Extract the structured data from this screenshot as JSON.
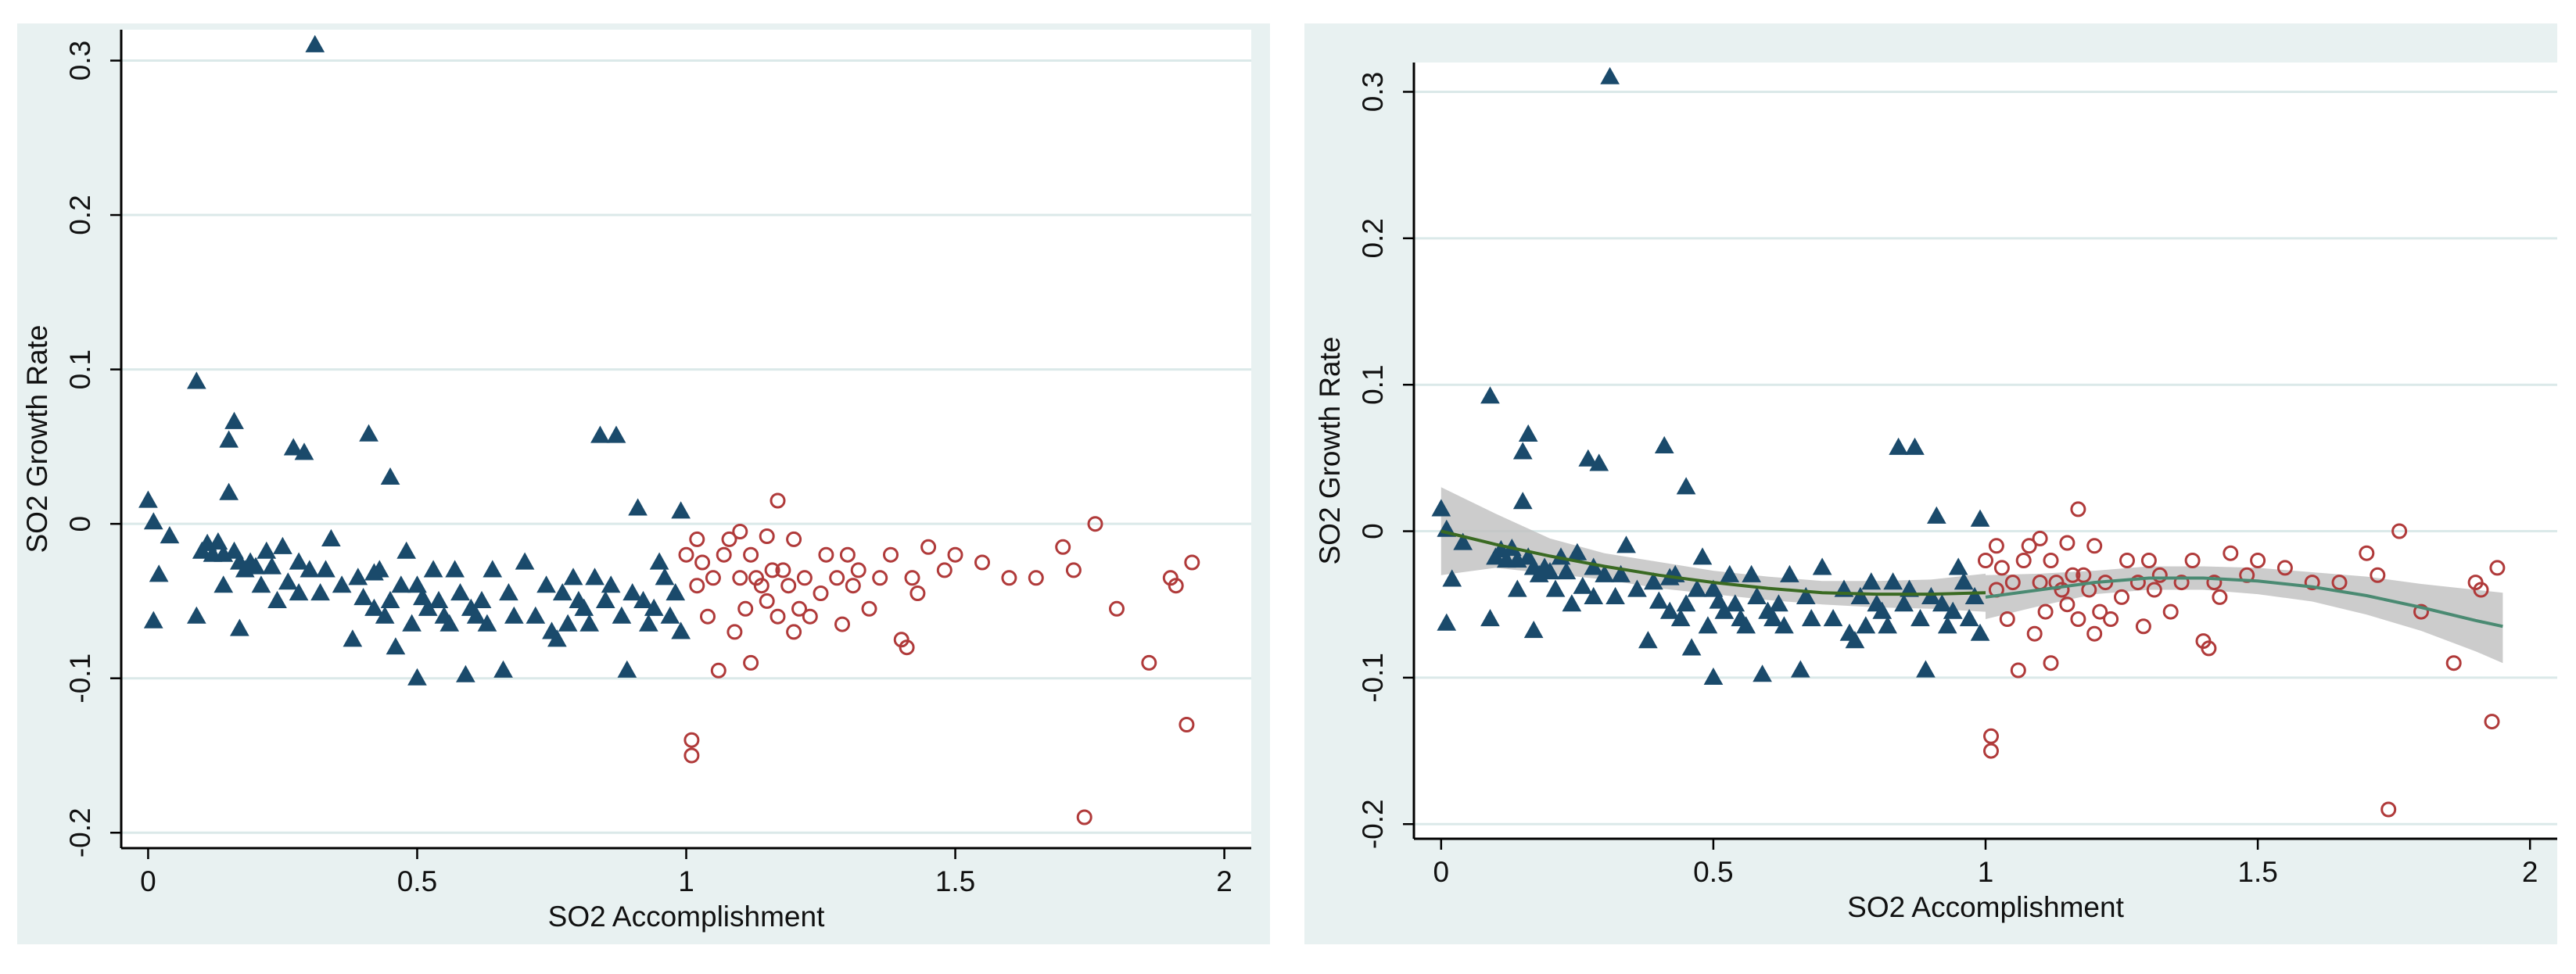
{
  "colors": {
    "outer_background": "#e8f1f1",
    "plot_background": "#ffffff",
    "gridline": "#dbe9e9",
    "axis": "#000000",
    "below_marker": "#1a4a6b",
    "above_marker": "#b03a3a",
    "fit_line_left": "#3a6a22",
    "fit_line_right": "#4a8a72",
    "confidence_band": "#bfbfbf"
  },
  "marker_shapes": {
    "below": "filled-triangle-marker",
    "above": "hollow-circle-marker"
  },
  "chart_data": [
    {
      "type": "scatter",
      "title": "",
      "xlabel": "SO2 Accomplishment",
      "ylabel": "SO2 Growth Rate",
      "xlim": [
        -0.05,
        2.05
      ],
      "ylim": [
        -0.21,
        0.32
      ],
      "xticks": [
        0,
        0.5,
        1,
        1.5,
        2
      ],
      "xtick_labels": [
        "0",
        "0.5",
        "1",
        "1.5",
        "2"
      ],
      "yticks": [
        -0.2,
        -0.1,
        0,
        0.1,
        0.2,
        0.3
      ],
      "ytick_labels": [
        "-0.2",
        "-0.1",
        "0",
        "0.1",
        "0.2",
        "0.3"
      ],
      "grid": true,
      "series": [
        {
          "marker": "triangle",
          "x": [
            0,
            0.01,
            0.01,
            0.02,
            0.04,
            0.09,
            0.09,
            0.1,
            0.11,
            0.12,
            0.13,
            0.14,
            0.14,
            0.15,
            0.15,
            0.16,
            0.16,
            0.17,
            0.17,
            0.18,
            0.19,
            0.2,
            0.21,
            0.22,
            0.23,
            0.24,
            0.25,
            0.26,
            0.27,
            0.28,
            0.28,
            0.29,
            0.3,
            0.31,
            0.32,
            0.33,
            0.34,
            0.36,
            0.38,
            0.39,
            0.4,
            0.41,
            0.42,
            0.42,
            0.43,
            0.44,
            0.45,
            0.45,
            0.46,
            0.47,
            0.48,
            0.49,
            0.5,
            0.5,
            0.51,
            0.52,
            0.53,
            0.54,
            0.55,
            0.56,
            0.57,
            0.58,
            0.59,
            0.6,
            0.61,
            0.62,
            0.63,
            0.64,
            0.66,
            0.67,
            0.68,
            0.7,
            0.72,
            0.74,
            0.75,
            0.76,
            0.77,
            0.78,
            0.79,
            0.8,
            0.81,
            0.82,
            0.83,
            0.84,
            0.85,
            0.86,
            0.87,
            0.88,
            0.89,
            0.9,
            0.91,
            0.92,
            0.93,
            0.94,
            0.95,
            0.96,
            0.97,
            0.98,
            0.99,
            0.99
          ],
          "y": [
            0.015,
            0.001,
            -0.063,
            -0.033,
            -0.008,
            0.092,
            -0.06,
            -0.018,
            -0.013,
            -0.02,
            -0.012,
            -0.02,
            -0.04,
            0.02,
            0.054,
            -0.018,
            0.066,
            -0.025,
            -0.068,
            -0.03,
            -0.025,
            -0.028,
            -0.04,
            -0.018,
            -0.028,
            -0.05,
            -0.015,
            -0.038,
            0.049,
            -0.045,
            -0.025,
            0.046,
            -0.03,
            0.31,
            -0.045,
            -0.03,
            -0.01,
            -0.04,
            -0.075,
            -0.035,
            -0.048,
            0.058,
            -0.055,
            -0.032,
            -0.03,
            -0.06,
            0.03,
            -0.05,
            -0.08,
            -0.04,
            -0.018,
            -0.065,
            -0.1,
            -0.04,
            -0.048,
            -0.055,
            -0.03,
            -0.05,
            -0.06,
            -0.065,
            -0.03,
            -0.045,
            -0.098,
            -0.055,
            -0.06,
            -0.05,
            -0.065,
            -0.03,
            -0.095,
            -0.045,
            -0.06,
            -0.025,
            -0.06,
            -0.04,
            -0.07,
            -0.075,
            -0.045,
            -0.065,
            -0.035,
            -0.05,
            -0.055,
            -0.065,
            -0.035,
            0.057,
            -0.05,
            -0.04,
            0.057,
            -0.06,
            -0.095,
            -0.045,
            0.01,
            -0.05,
            -0.065,
            -0.055,
            -0.025,
            -0.035,
            -0.06,
            -0.045,
            0.008,
            -0.07
          ]
        },
        {
          "marker": "circle",
          "x": [
            1.0,
            1.01,
            1.01,
            1.02,
            1.02,
            1.03,
            1.04,
            1.05,
            1.06,
            1.07,
            1.08,
            1.09,
            1.1,
            1.1,
            1.11,
            1.12,
            1.12,
            1.13,
            1.14,
            1.15,
            1.15,
            1.16,
            1.17,
            1.17,
            1.18,
            1.19,
            1.2,
            1.2,
            1.21,
            1.22,
            1.23,
            1.25,
            1.26,
            1.28,
            1.29,
            1.3,
            1.31,
            1.32,
            1.34,
            1.36,
            1.38,
            1.4,
            1.41,
            1.42,
            1.43,
            1.45,
            1.48,
            1.5,
            1.55,
            1.6,
            1.65,
            1.7,
            1.72,
            1.74,
            1.76,
            1.8,
            1.86,
            1.9,
            1.91,
            1.93,
            1.94
          ],
          "y": [
            -0.02,
            -0.14,
            -0.15,
            -0.04,
            -0.01,
            -0.025,
            -0.06,
            -0.035,
            -0.095,
            -0.02,
            -0.01,
            -0.07,
            -0.035,
            -0.005,
            -0.055,
            -0.02,
            -0.09,
            -0.035,
            -0.04,
            -0.05,
            -0.008,
            -0.03,
            -0.06,
            0.015,
            -0.03,
            -0.04,
            -0.07,
            -0.01,
            -0.055,
            -0.035,
            -0.06,
            -0.045,
            -0.02,
            -0.035,
            -0.065,
            -0.02,
            -0.04,
            -0.03,
            -0.055,
            -0.035,
            -0.02,
            -0.075,
            -0.08,
            -0.035,
            -0.045,
            -0.015,
            -0.03,
            -0.02,
            -0.025,
            -0.035,
            -0.035,
            -0.015,
            -0.03,
            -0.19,
            0.0,
            -0.055,
            -0.09,
            -0.035,
            -0.04,
            -0.13,
            -0.025
          ]
        }
      ]
    },
    {
      "type": "scatter",
      "title": "",
      "xlabel": "SO2 Accomplishment",
      "ylabel": "SO2 Growth Rate",
      "xlim": [
        -0.05,
        2.05
      ],
      "ylim": [
        -0.21,
        0.32
      ],
      "xticks": [
        0,
        0.5,
        1,
        1.5,
        2
      ],
      "xtick_labels": [
        "0",
        "0.5",
        "1",
        "1.5",
        "2"
      ],
      "yticks": [
        -0.2,
        -0.1,
        0,
        0.1,
        0.2,
        0.3
      ],
      "ytick_labels": [
        "-0.2",
        "-0.1",
        "0",
        "0.1",
        "0.2",
        "0.3"
      ],
      "grid": true,
      "fit_lines": [
        {
          "x": [
            0,
            0.1,
            0.2,
            0.3,
            0.4,
            0.5,
            0.6,
            0.7,
            0.8,
            0.9,
            1.0
          ],
          "y": [
            0.0,
            -0.009,
            -0.017,
            -0.024,
            -0.03,
            -0.035,
            -0.039,
            -0.042,
            -0.043,
            -0.043,
            -0.042
          ],
          "ci_low": [
            -0.03,
            -0.025,
            -0.029,
            -0.033,
            -0.039,
            -0.043,
            -0.047,
            -0.05,
            -0.052,
            -0.053,
            -0.055
          ],
          "ci_high": [
            0.03,
            0.012,
            -0.005,
            -0.015,
            -0.021,
            -0.027,
            -0.031,
            -0.034,
            -0.034,
            -0.033,
            -0.029
          ]
        },
        {
          "x": [
            1.0,
            1.1,
            1.2,
            1.3,
            1.4,
            1.5,
            1.6,
            1.7,
            1.8,
            1.9,
            1.95
          ],
          "y": [
            -0.045,
            -0.04,
            -0.035,
            -0.032,
            -0.032,
            -0.034,
            -0.038,
            -0.044,
            -0.052,
            -0.061,
            -0.065
          ],
          "ci_low": [
            -0.06,
            -0.051,
            -0.043,
            -0.04,
            -0.04,
            -0.043,
            -0.048,
            -0.057,
            -0.068,
            -0.082,
            -0.09
          ],
          "ci_high": [
            -0.03,
            -0.029,
            -0.027,
            -0.024,
            -0.024,
            -0.025,
            -0.028,
            -0.031,
            -0.036,
            -0.04,
            -0.042
          ]
        }
      ],
      "series": [
        {
          "marker": "triangle",
          "x": [
            0,
            0.01,
            0.01,
            0.02,
            0.04,
            0.09,
            0.09,
            0.1,
            0.11,
            0.12,
            0.13,
            0.14,
            0.14,
            0.15,
            0.15,
            0.16,
            0.16,
            0.17,
            0.17,
            0.18,
            0.19,
            0.2,
            0.21,
            0.22,
            0.23,
            0.24,
            0.25,
            0.26,
            0.27,
            0.28,
            0.28,
            0.29,
            0.3,
            0.31,
            0.32,
            0.33,
            0.34,
            0.36,
            0.38,
            0.39,
            0.4,
            0.41,
            0.42,
            0.42,
            0.43,
            0.44,
            0.45,
            0.45,
            0.46,
            0.47,
            0.48,
            0.49,
            0.5,
            0.5,
            0.51,
            0.52,
            0.53,
            0.54,
            0.55,
            0.56,
            0.57,
            0.58,
            0.59,
            0.6,
            0.61,
            0.62,
            0.63,
            0.64,
            0.66,
            0.67,
            0.68,
            0.7,
            0.72,
            0.74,
            0.75,
            0.76,
            0.77,
            0.78,
            0.79,
            0.8,
            0.81,
            0.82,
            0.83,
            0.84,
            0.85,
            0.86,
            0.87,
            0.88,
            0.89,
            0.9,
            0.91,
            0.92,
            0.93,
            0.94,
            0.95,
            0.96,
            0.97,
            0.98,
            0.99,
            0.99
          ],
          "y": [
            0.015,
            0.001,
            -0.063,
            -0.033,
            -0.008,
            0.092,
            -0.06,
            -0.018,
            -0.013,
            -0.02,
            -0.012,
            -0.02,
            -0.04,
            0.02,
            0.054,
            -0.018,
            0.066,
            -0.025,
            -0.068,
            -0.03,
            -0.025,
            -0.028,
            -0.04,
            -0.018,
            -0.028,
            -0.05,
            -0.015,
            -0.038,
            0.049,
            -0.045,
            -0.025,
            0.046,
            -0.03,
            0.31,
            -0.045,
            -0.03,
            -0.01,
            -0.04,
            -0.075,
            -0.035,
            -0.048,
            0.058,
            -0.055,
            -0.032,
            -0.03,
            -0.06,
            0.03,
            -0.05,
            -0.08,
            -0.04,
            -0.018,
            -0.065,
            -0.1,
            -0.04,
            -0.048,
            -0.055,
            -0.03,
            -0.05,
            -0.06,
            -0.065,
            -0.03,
            -0.045,
            -0.098,
            -0.055,
            -0.06,
            -0.05,
            -0.065,
            -0.03,
            -0.095,
            -0.045,
            -0.06,
            -0.025,
            -0.06,
            -0.04,
            -0.07,
            -0.075,
            -0.045,
            -0.065,
            -0.035,
            -0.05,
            -0.055,
            -0.065,
            -0.035,
            0.057,
            -0.05,
            -0.04,
            0.057,
            -0.06,
            -0.095,
            -0.045,
            0.01,
            -0.05,
            -0.065,
            -0.055,
            -0.025,
            -0.035,
            -0.06,
            -0.045,
            0.008,
            -0.07
          ]
        },
        {
          "marker": "circle",
          "x": [
            1.0,
            1.01,
            1.01,
            1.02,
            1.02,
            1.03,
            1.04,
            1.05,
            1.06,
            1.07,
            1.08,
            1.09,
            1.1,
            1.1,
            1.11,
            1.12,
            1.12,
            1.13,
            1.14,
            1.15,
            1.15,
            1.16,
            1.17,
            1.17,
            1.18,
            1.19,
            1.2,
            1.2,
            1.21,
            1.22,
            1.23,
            1.25,
            1.26,
            1.28,
            1.29,
            1.3,
            1.31,
            1.32,
            1.34,
            1.36,
            1.38,
            1.4,
            1.41,
            1.42,
            1.43,
            1.45,
            1.48,
            1.5,
            1.55,
            1.6,
            1.65,
            1.7,
            1.72,
            1.74,
            1.76,
            1.8,
            1.86,
            1.9,
            1.91,
            1.93,
            1.94
          ],
          "y": [
            -0.02,
            -0.14,
            -0.15,
            -0.04,
            -0.01,
            -0.025,
            -0.06,
            -0.035,
            -0.095,
            -0.02,
            -0.01,
            -0.07,
            -0.035,
            -0.005,
            -0.055,
            -0.02,
            -0.09,
            -0.035,
            -0.04,
            -0.05,
            -0.008,
            -0.03,
            -0.06,
            0.015,
            -0.03,
            -0.04,
            -0.07,
            -0.01,
            -0.055,
            -0.035,
            -0.06,
            -0.045,
            -0.02,
            -0.035,
            -0.065,
            -0.02,
            -0.04,
            -0.03,
            -0.055,
            -0.035,
            -0.02,
            -0.075,
            -0.08,
            -0.035,
            -0.045,
            -0.015,
            -0.03,
            -0.02,
            -0.025,
            -0.035,
            -0.035,
            -0.015,
            -0.03,
            -0.19,
            0.0,
            -0.055,
            -0.09,
            -0.035,
            -0.04,
            -0.13,
            -0.025
          ]
        }
      ]
    }
  ]
}
